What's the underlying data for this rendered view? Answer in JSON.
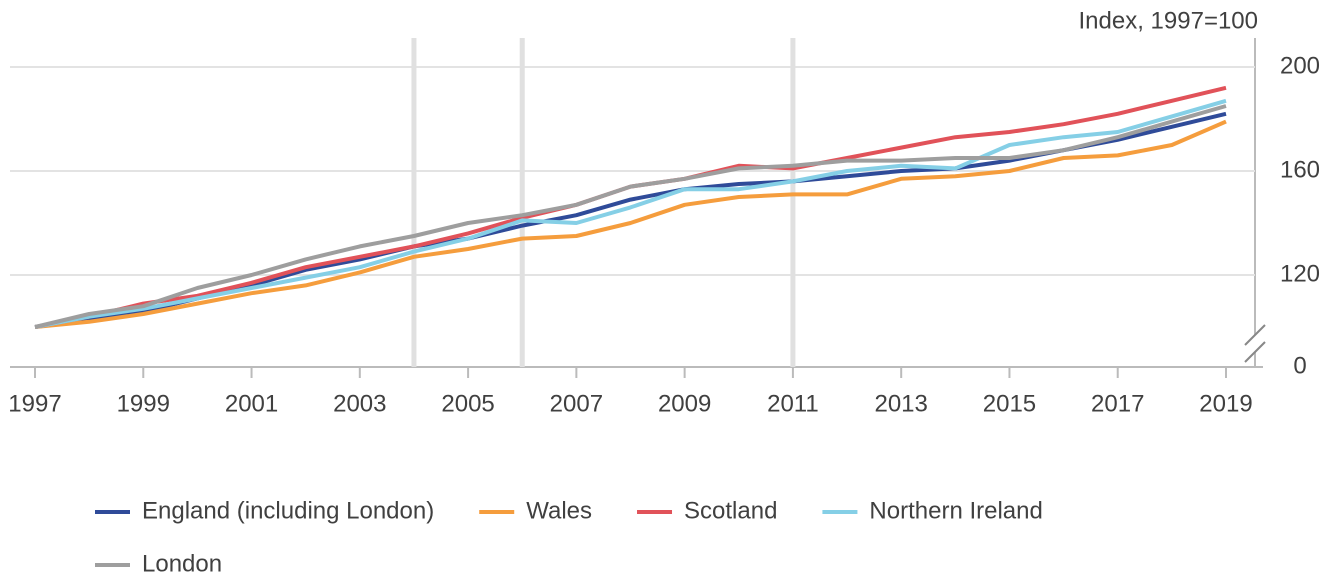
{
  "chart_data": {
    "type": "line",
    "y_axis_label": "Index, 1997=100",
    "x": [
      1997,
      1998,
      1999,
      2000,
      2001,
      2002,
      2003,
      2004,
      2005,
      2006,
      2007,
      2008,
      2009,
      2010,
      2011,
      2012,
      2013,
      2014,
      2015,
      2016,
      2017,
      2018,
      2019
    ],
    "series": [
      {
        "name": "England (including London)",
        "color": "#2f4b99",
        "values": [
          100,
          103,
          106,
          111,
          116,
          122,
          126,
          131,
          134,
          139,
          143,
          149,
          153,
          155,
          156,
          158,
          160,
          161,
          164,
          168,
          172,
          177,
          182
        ]
      },
      {
        "name": "Wales",
        "color": "#f59d3d",
        "values": [
          100,
          102,
          105,
          109,
          113,
          116,
          121,
          127,
          130,
          134,
          135,
          140,
          147,
          150,
          151,
          151,
          157,
          158,
          160,
          165,
          166,
          170,
          179
        ]
      },
      {
        "name": "Scotland",
        "color": "#e15259",
        "values": [
          100,
          104,
          109,
          112,
          117,
          123,
          127,
          131,
          136,
          142,
          147,
          154,
          157,
          162,
          161,
          165,
          169,
          173,
          175,
          178,
          182,
          187,
          192
        ]
      },
      {
        "name": "Northern Ireland",
        "color": "#85cfe6",
        "values": [
          100,
          104,
          107,
          111,
          115,
          119,
          123,
          129,
          134,
          141,
          140,
          146,
          153,
          153,
          156,
          160,
          162,
          161,
          170,
          173,
          175,
          181,
          187
        ]
      },
      {
        "name": "London",
        "color": "#9e9e9e",
        "values": [
          100,
          105,
          108,
          115,
          120,
          126,
          131,
          135,
          140,
          143,
          147,
          154,
          157,
          161,
          162,
          164,
          164,
          165,
          165,
          168,
          173,
          179,
          185
        ]
      }
    ],
    "xlim": [
      1997,
      2019
    ],
    "xticks": [
      1997,
      1999,
      2001,
      2003,
      2005,
      2007,
      2009,
      2011,
      2013,
      2015,
      2017,
      2019
    ],
    "ylim": [
      85,
      210
    ],
    "yticks": [
      0,
      120,
      160,
      200
    ],
    "axis_break": true,
    "reference_lines": [
      2004,
      2006,
      2011
    ],
    "grid": true
  }
}
